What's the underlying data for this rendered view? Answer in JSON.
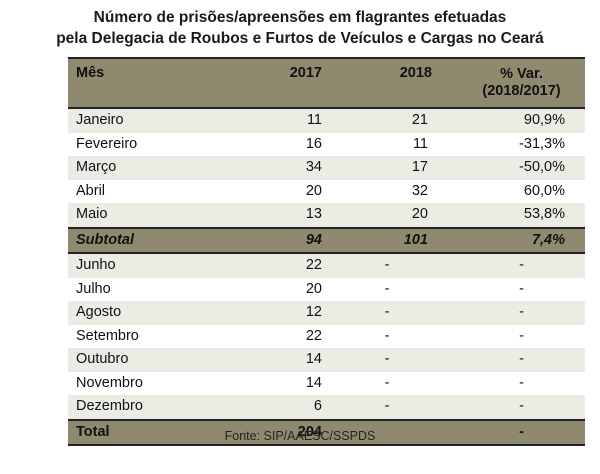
{
  "title": {
    "line1": "Número de prisões/apreensões em flagrantes efetuadas",
    "line2": "pela Delegacia de Roubos e Furtos de Veículos e Cargas no Ceará"
  },
  "table": {
    "headers": {
      "month": "Mês",
      "y2017": "2017",
      "y2018": "2018",
      "var_line1": "% Var.",
      "var_line2": "(2018/2017)"
    },
    "rows_a": [
      {
        "month": "Janeiro",
        "y2017": "11",
        "y2018": "21",
        "var": "90,9%"
      },
      {
        "month": "Fevereiro",
        "y2017": "16",
        "y2018": "11",
        "var": "-31,3%"
      },
      {
        "month": "Março",
        "y2017": "34",
        "y2018": "17",
        "var": "-50,0%"
      },
      {
        "month": "Abril",
        "y2017": "20",
        "y2018": "32",
        "var": "60,0%"
      },
      {
        "month": "Maio",
        "y2017": "13",
        "y2018": "20",
        "var": "53,8%"
      }
    ],
    "subtotal": {
      "label": "Subtotal",
      "y2017": "94",
      "y2018": "101",
      "var": "7,4%"
    },
    "rows_b": [
      {
        "month": "Junho",
        "y2017": "22",
        "y2018": "-",
        "var": "-"
      },
      {
        "month": "Julho",
        "y2017": "20",
        "y2018": "-",
        "var": "-"
      },
      {
        "month": "Agosto",
        "y2017": "12",
        "y2018": "-",
        "var": "-"
      },
      {
        "month": "Setembro",
        "y2017": "22",
        "y2018": "-",
        "var": "-"
      },
      {
        "month": "Outubro",
        "y2017": "14",
        "y2018": "-",
        "var": "-"
      },
      {
        "month": "Novembro",
        "y2017": "14",
        "y2018": "-",
        "var": "-"
      },
      {
        "month": "Dezembro",
        "y2017": "6",
        "y2018": "-",
        "var": "-"
      }
    ],
    "total": {
      "label": "Total",
      "y2017": "204",
      "y2018": "",
      "var": "-"
    }
  },
  "source": "Fonte: SIP/AAESC/SSPDS",
  "colors": {
    "header_bg": "#8f8a6f",
    "stripe": "#edece4"
  }
}
